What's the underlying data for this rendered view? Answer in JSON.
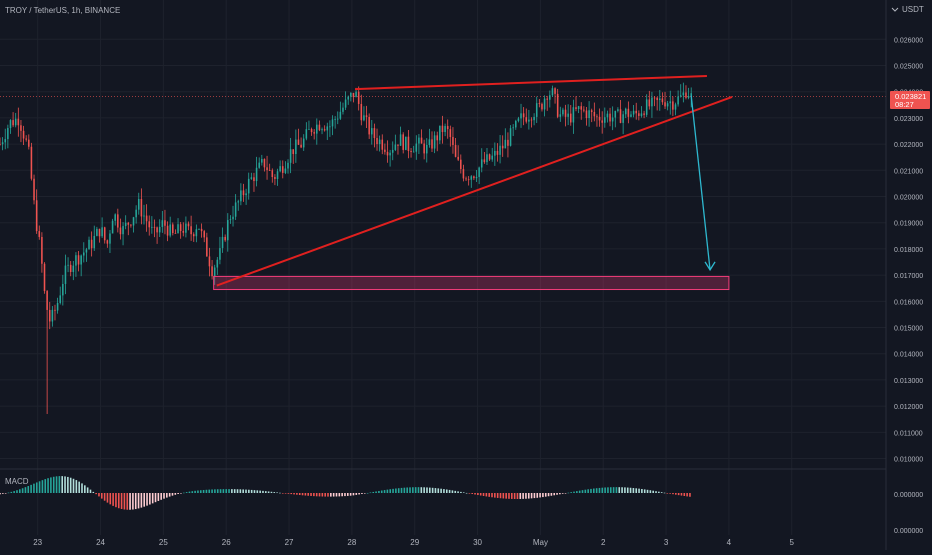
{
  "header": {
    "symbol_line": "TROY / TetherUS, 1h, BINANCE",
    "currency_label": "USDT"
  },
  "price_axis": {
    "ticks": [
      "0.026000",
      "0.025000",
      "0.024000",
      "0.023000",
      "0.022000",
      "0.021000",
      "0.020000",
      "0.019000",
      "0.018000",
      "0.017000",
      "0.016000",
      "0.015000",
      "0.014000",
      "0.013000",
      "0.012000",
      "0.011000",
      "0.010000"
    ],
    "current_price": "0.023821",
    "countdown": "08:27"
  },
  "macd": {
    "label": "MACD",
    "ticks": [
      "0.000000",
      "0.000000"
    ]
  },
  "time_axis": {
    "labels": [
      "23",
      "24",
      "25",
      "26",
      "27",
      "28",
      "29",
      "30",
      "May",
      "2",
      "3",
      "4",
      "5"
    ]
  },
  "colors": {
    "background": "#131722",
    "up": "#26a69a",
    "down": "#ef5350",
    "trendline": "#e0201f",
    "arrow": "#2eb8cf",
    "target_zone": "#f23d7a",
    "price_tag": "#ef5350"
  },
  "chart_data": {
    "type": "candlestick",
    "title": "TROY / TetherUS, 1h, BINANCE",
    "ylim": [
      0.0096,
      0.0275
    ],
    "x_range_days": [
      22.4,
      36.5
    ],
    "day_ticks": [
      {
        "label": "23",
        "day": 23
      },
      {
        "label": "24",
        "day": 24
      },
      {
        "label": "25",
        "day": 25
      },
      {
        "label": "26",
        "day": 26
      },
      {
        "label": "27",
        "day": 27
      },
      {
        "label": "28",
        "day": 28
      },
      {
        "label": "29",
        "day": 29
      },
      {
        "label": "30",
        "day": 30
      },
      {
        "label": "May",
        "day": 31
      },
      {
        "label": "2",
        "day": 32
      },
      {
        "label": "3",
        "day": 33
      },
      {
        "label": "4",
        "day": 34
      },
      {
        "label": "5",
        "day": 35
      }
    ],
    "price_path": [
      [
        22.4,
        0.022
      ],
      [
        22.55,
        0.0228
      ],
      [
        22.7,
        0.023
      ],
      [
        22.85,
        0.0218
      ],
      [
        22.95,
        0.0195
      ],
      [
        23.05,
        0.0178
      ],
      [
        23.12,
        0.016
      ],
      [
        23.2,
        0.0152
      ],
      [
        23.3,
        0.0158
      ],
      [
        23.42,
        0.017
      ],
      [
        23.55,
        0.0175
      ],
      [
        23.7,
        0.0178
      ],
      [
        23.85,
        0.0182
      ],
      [
        24.0,
        0.0188
      ],
      [
        24.1,
        0.0181
      ],
      [
        24.2,
        0.0194
      ],
      [
        24.35,
        0.0187
      ],
      [
        24.5,
        0.0192
      ],
      [
        24.6,
        0.0197
      ],
      [
        24.75,
        0.019
      ],
      [
        24.85,
        0.0185
      ],
      [
        25.0,
        0.019
      ],
      [
        25.15,
        0.0185
      ],
      [
        25.3,
        0.0188
      ],
      [
        25.45,
        0.0186
      ],
      [
        25.55,
        0.019
      ],
      [
        25.65,
        0.0182
      ],
      [
        25.78,
        0.0172
      ],
      [
        25.9,
        0.0178
      ],
      [
        26.05,
        0.0192
      ],
      [
        26.2,
        0.0198
      ],
      [
        26.35,
        0.0205
      ],
      [
        26.5,
        0.021
      ],
      [
        26.6,
        0.0213
      ],
      [
        26.75,
        0.0207
      ],
      [
        26.9,
        0.0212
      ],
      [
        27.05,
        0.0218
      ],
      [
        27.2,
        0.022
      ],
      [
        27.35,
        0.0226
      ],
      [
        27.5,
        0.0228
      ],
      [
        27.65,
        0.0227
      ],
      [
        27.8,
        0.0232
      ],
      [
        27.95,
        0.0237
      ],
      [
        28.05,
        0.024
      ],
      [
        28.15,
        0.0232
      ],
      [
        28.3,
        0.0224
      ],
      [
        28.45,
        0.0221
      ],
      [
        28.6,
        0.0218
      ],
      [
        28.75,
        0.0222
      ],
      [
        28.9,
        0.0219
      ],
      [
        29.05,
        0.022
      ],
      [
        29.2,
        0.0218
      ],
      [
        29.3,
        0.0221
      ],
      [
        29.45,
        0.0226
      ],
      [
        29.55,
        0.0224
      ],
      [
        29.65,
        0.0214
      ],
      [
        29.8,
        0.0208
      ],
      [
        29.95,
        0.0209
      ],
      [
        30.1,
        0.0213
      ],
      [
        30.25,
        0.0215
      ],
      [
        30.4,
        0.0219
      ],
      [
        30.55,
        0.0224
      ],
      [
        30.7,
        0.023
      ],
      [
        30.85,
        0.0232
      ],
      [
        31.0,
        0.0234
      ],
      [
        31.1,
        0.024
      ],
      [
        31.2,
        0.0239
      ],
      [
        31.3,
        0.0231
      ],
      [
        31.45,
        0.023
      ],
      [
        31.6,
        0.0233
      ],
      [
        31.75,
        0.0232
      ],
      [
        31.9,
        0.023
      ],
      [
        32.05,
        0.0231
      ],
      [
        32.2,
        0.023
      ],
      [
        32.35,
        0.0232
      ],
      [
        32.5,
        0.0231
      ],
      [
        32.65,
        0.0234
      ],
      [
        32.8,
        0.0235
      ],
      [
        32.95,
        0.0237
      ],
      [
        33.1,
        0.0236
      ],
      [
        33.25,
        0.0238
      ],
      [
        33.33,
        0.0241
      ],
      [
        33.4,
        0.0238
      ]
    ],
    "annotations": {
      "rising_wedge_upper": [
        [
          28.05,
          0.0241
        ],
        [
          33.65,
          0.0246
        ]
      ],
      "rising_wedge_lower": [
        [
          25.85,
          0.0166
        ],
        [
          34.05,
          0.0238
        ]
      ],
      "target_zone": {
        "day_from": 25.8,
        "day_to": 34.0,
        "price_from": 0.01645,
        "price_to": 0.01695
      },
      "projection_arrow": {
        "from": [
          33.4,
          0.02385
        ],
        "to": [
          33.7,
          0.0172
        ]
      }
    }
  }
}
